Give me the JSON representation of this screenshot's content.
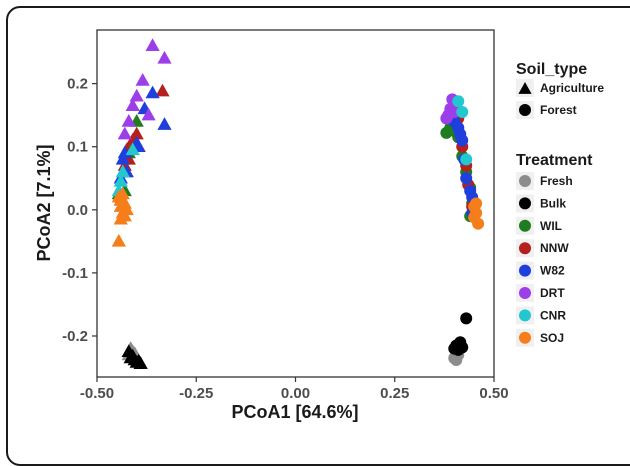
{
  "chart_data": {
    "type": "scatter",
    "xlabel": "PCoA1 [64.6%]",
    "ylabel": "PCoA2 [7.1%]",
    "xlim": [
      -0.5,
      0.5
    ],
    "ylim": [
      -0.265,
      0.285
    ],
    "x_ticks": [
      -0.5,
      -0.25,
      0.0,
      0.25,
      0.5
    ],
    "x_tick_labels": [
      "-0.50",
      "-0.25",
      "0.00",
      "0.25",
      "0.50"
    ],
    "y_ticks": [
      -0.2,
      -0.1,
      0.0,
      0.1,
      0.2
    ],
    "y_tick_labels": [
      "-0.2",
      "-0.1",
      "0.0",
      "0.1",
      "0.2"
    ],
    "grid": false,
    "legend_position": "right",
    "shape_legend": {
      "title": "Soil_type",
      "items": [
        {
          "label": "Agriculture",
          "shape": "triangle"
        },
        {
          "label": "Forest",
          "shape": "circle"
        }
      ]
    },
    "color_legend": {
      "title": "Treatment",
      "items": [
        {
          "label": "Fresh",
          "color": "#8c8c8c"
        },
        {
          "label": "Bulk",
          "color": "#000000"
        },
        {
          "label": "WIL",
          "color": "#1e7d1e"
        },
        {
          "label": "NNW",
          "color": "#b5201c"
        },
        {
          "label": "W82",
          "color": "#1f3fdc"
        },
        {
          "label": "DRT",
          "color": "#9d3fe8"
        },
        {
          "label": "CNR",
          "color": "#22c7d0"
        },
        {
          "label": "SOJ",
          "color": "#f57e1a"
        }
      ]
    },
    "series": [
      {
        "treatment": "Fresh",
        "soil_type": "Agriculture",
        "points": [
          [
            -0.415,
            -0.22
          ],
          [
            -0.41,
            -0.225
          ],
          [
            -0.405,
            -0.228
          ],
          [
            -0.42,
            -0.23
          ]
        ]
      },
      {
        "treatment": "Bulk",
        "soil_type": "Agriculture",
        "points": [
          [
            -0.42,
            -0.225
          ],
          [
            -0.41,
            -0.232
          ],
          [
            -0.405,
            -0.238
          ],
          [
            -0.395,
            -0.24
          ],
          [
            -0.415,
            -0.235
          ],
          [
            -0.4,
            -0.242
          ],
          [
            -0.39,
            -0.244
          ]
        ]
      },
      {
        "treatment": "WIL",
        "soil_type": "Agriculture",
        "points": [
          [
            -0.445,
            0.025
          ],
          [
            -0.44,
            0.02
          ],
          [
            -0.43,
            0.06
          ],
          [
            -0.42,
            0.09
          ],
          [
            -0.41,
            0.1
          ],
          [
            -0.43,
            0.03
          ],
          [
            -0.44,
            0.015
          ],
          [
            -0.4,
            0.14
          ]
        ]
      },
      {
        "treatment": "NNW",
        "soil_type": "Agriculture",
        "points": [
          [
            -0.42,
            0.08
          ],
          [
            -0.41,
            0.11
          ],
          [
            -0.335,
            0.188
          ],
          [
            -0.4,
            0.12
          ],
          [
            -0.43,
            0.07
          ],
          [
            -0.425,
            0.095
          ]
        ]
      },
      {
        "treatment": "W82",
        "soil_type": "Agriculture",
        "points": [
          [
            -0.36,
            0.185
          ],
          [
            -0.33,
            0.135
          ],
          [
            -0.435,
            0.08
          ],
          [
            -0.44,
            0.05
          ],
          [
            -0.43,
            0.09
          ],
          [
            -0.4,
            0.105
          ],
          [
            -0.38,
            0.16
          ],
          [
            -0.425,
            0.06
          ],
          [
            -0.395,
            0.1
          ]
        ]
      },
      {
        "treatment": "DRT",
        "soil_type": "Agriculture",
        "points": [
          [
            -0.36,
            0.26
          ],
          [
            -0.33,
            0.24
          ],
          [
            -0.385,
            0.205
          ],
          [
            -0.4,
            0.18
          ],
          [
            -0.41,
            0.165
          ],
          [
            -0.42,
            0.14
          ],
          [
            -0.43,
            0.12
          ],
          [
            -0.37,
            0.15
          ]
        ]
      },
      {
        "treatment": "CNR",
        "soil_type": "Agriculture",
        "points": [
          [
            -0.44,
            0.045
          ],
          [
            -0.445,
            0.03
          ],
          [
            -0.41,
            0.095
          ],
          [
            -0.435,
            0.06
          ]
        ]
      },
      {
        "treatment": "SOJ",
        "soil_type": "Agriculture",
        "points": [
          [
            -0.44,
            0.015
          ],
          [
            -0.44,
            0.005
          ],
          [
            -0.435,
            -0.005
          ],
          [
            -0.43,
            -0.01
          ],
          [
            -0.425,
            0.0
          ],
          [
            -0.445,
            -0.05
          ],
          [
            -0.435,
            0.025
          ],
          [
            -0.44,
            -0.015
          ],
          [
            -0.43,
            0.01
          ],
          [
            -0.445,
            0.02
          ]
        ]
      },
      {
        "treatment": "Fresh",
        "soil_type": "Forest",
        "points": [
          [
            0.405,
            -0.225
          ],
          [
            0.41,
            -0.23
          ],
          [
            0.4,
            -0.235
          ],
          [
            0.405,
            -0.238
          ]
        ]
      },
      {
        "treatment": "Bulk",
        "soil_type": "Forest",
        "points": [
          [
            0.43,
            -0.172
          ],
          [
            0.415,
            -0.21
          ],
          [
            0.405,
            -0.215
          ],
          [
            0.4,
            -0.22
          ],
          [
            0.41,
            -0.222
          ],
          [
            0.42,
            -0.218
          ]
        ]
      },
      {
        "treatment": "WIL",
        "soil_type": "Forest",
        "points": [
          [
            0.38,
            0.122
          ],
          [
            0.39,
            0.13
          ],
          [
            0.4,
            0.125
          ],
          [
            0.41,
            0.115
          ],
          [
            0.42,
            0.085
          ],
          [
            0.43,
            0.06
          ],
          [
            0.44,
            0.035
          ],
          [
            0.445,
            0.01
          ],
          [
            0.44,
            -0.01
          ]
        ]
      },
      {
        "treatment": "NNW",
        "soil_type": "Forest",
        "points": [
          [
            0.405,
            0.16
          ],
          [
            0.41,
            0.145
          ],
          [
            0.42,
            0.1
          ],
          [
            0.43,
            0.07
          ],
          [
            0.435,
            0.04
          ],
          [
            0.445,
            0.005
          ]
        ]
      },
      {
        "treatment": "W82",
        "soil_type": "Forest",
        "points": [
          [
            0.4,
            0.14
          ],
          [
            0.41,
            0.13
          ],
          [
            0.415,
            0.12
          ],
          [
            0.42,
            0.11
          ],
          [
            0.425,
            0.08
          ],
          [
            0.43,
            0.05
          ],
          [
            0.44,
            0.03
          ],
          [
            0.445,
            0.02
          ],
          [
            0.445,
            -0.005
          ]
        ]
      },
      {
        "treatment": "DRT",
        "soil_type": "Forest",
        "points": [
          [
            0.38,
            0.145
          ],
          [
            0.39,
            0.16
          ],
          [
            0.395,
            0.175
          ],
          [
            0.4,
            0.155
          ],
          [
            0.385,
            0.15
          ]
        ]
      },
      {
        "treatment": "CNR",
        "soil_type": "Forest",
        "points": [
          [
            0.41,
            0.172
          ],
          [
            0.42,
            0.155
          ],
          [
            0.43,
            0.08
          ]
        ]
      },
      {
        "treatment": "SOJ",
        "soil_type": "Forest",
        "points": [
          [
            0.45,
            0.005
          ],
          [
            0.455,
            -0.005
          ],
          [
            0.46,
            -0.022
          ],
          [
            0.45,
            -0.012
          ],
          [
            0.455,
            0.01
          ]
        ]
      }
    ]
  }
}
